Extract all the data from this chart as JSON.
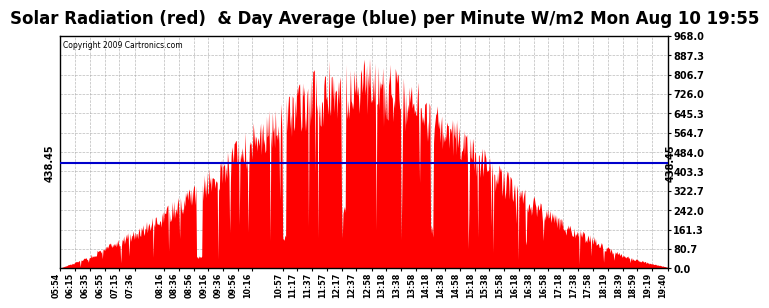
{
  "title": "Solar Radiation (red)  & Day Average (blue) per Minute W/m2 Mon Aug 10 19:55",
  "copyright_text": "Copyright 2009 Cartronics.com",
  "avg_value": 438.45,
  "y_ticks": [
    0.0,
    80.7,
    161.3,
    242.0,
    322.7,
    403.3,
    484.0,
    564.7,
    645.3,
    726.0,
    806.7,
    887.3,
    968.0
  ],
  "ymax": 968.0,
  "ymin": 0.0,
  "bar_color": "#FF0000",
  "avg_line_color": "#0000CC",
  "background_color": "#FFFFFF",
  "plot_bg_color": "#FFFFFF",
  "grid_color": "#AAAAAA",
  "title_fontsize": 12,
  "tick_label_rotation": 90,
  "label_times": [
    "05:54",
    "06:15",
    "06:35",
    "06:55",
    "07:15",
    "07:36",
    "08:16",
    "08:36",
    "08:56",
    "09:16",
    "09:36",
    "09:56",
    "10:16",
    "10:57",
    "11:17",
    "11:37",
    "11:57",
    "12:17",
    "12:37",
    "12:58",
    "13:18",
    "13:38",
    "13:58",
    "14:18",
    "14:38",
    "14:58",
    "15:18",
    "15:38",
    "15:58",
    "16:18",
    "16:38",
    "16:58",
    "17:18",
    "17:38",
    "17:58",
    "18:19",
    "18:39",
    "18:59",
    "19:19",
    "19:40"
  ],
  "start_time": "05:54",
  "end_time": "19:40",
  "n_points": 826,
  "peak_time": "12:37",
  "seed": 137
}
